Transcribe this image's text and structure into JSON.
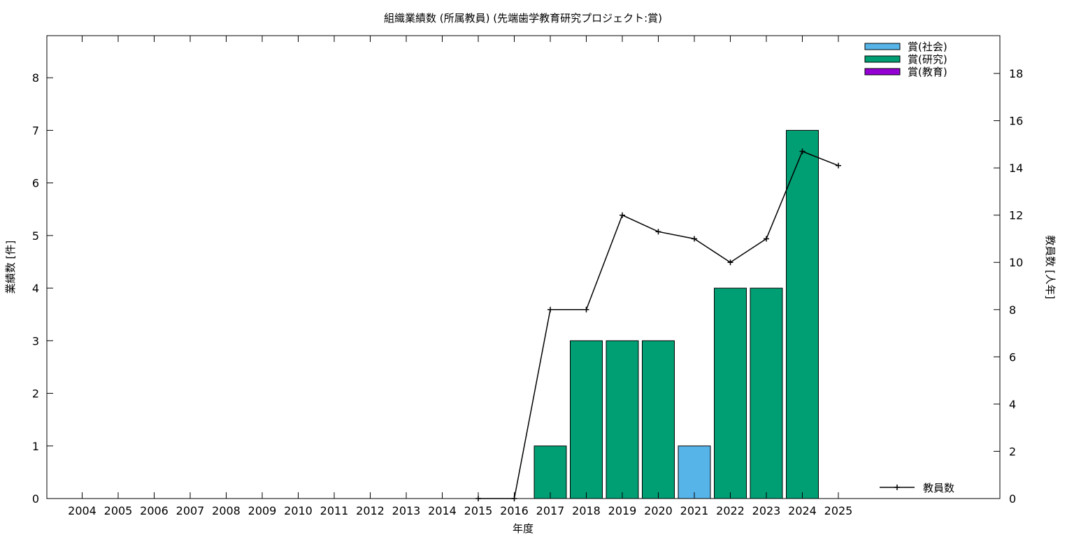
{
  "chart_data": {
    "type": "bar",
    "title": "組織業績数 (所属教員) (先端歯学教育研究プロジェクト:賞)",
    "xlabel": "年度",
    "ylabel": "業績数 [件]",
    "y2label": "教員数 [人年]",
    "categories": [
      "2004",
      "2005",
      "2006",
      "2007",
      "2008",
      "2009",
      "2010",
      "2011",
      "2012",
      "2013",
      "2014",
      "2015",
      "2016",
      "2017",
      "2018",
      "2019",
      "2020",
      "2021",
      "2022",
      "2023",
      "2024",
      "2025"
    ],
    "ylim": [
      0,
      8.8
    ],
    "y2lim": [
      0,
      19.6
    ],
    "yticks": [
      0,
      1,
      2,
      3,
      4,
      5,
      6,
      7,
      8
    ],
    "y2ticks": [
      0,
      2,
      4,
      6,
      8,
      10,
      12,
      14,
      16,
      18
    ],
    "legend_placement": "top-right",
    "series": [
      {
        "name": "賞(社会)",
        "color": "#56b4e9",
        "values": [
          0,
          0,
          0,
          0,
          0,
          0,
          0,
          0,
          0,
          0,
          0,
          0,
          0,
          0,
          0,
          0,
          0,
          1,
          0,
          0,
          0,
          0
        ]
      },
      {
        "name": "賞(研究)",
        "color": "#009e73",
        "values": [
          0,
          0,
          0,
          0,
          0,
          0,
          0,
          0,
          0,
          0,
          0,
          0,
          0,
          1,
          3,
          3,
          3,
          0,
          4,
          4,
          7,
          0
        ]
      },
      {
        "name": "賞(教育)",
        "color": "#9400d3",
        "values": [
          0,
          0,
          0,
          0,
          0,
          0,
          0,
          0,
          0,
          0,
          0,
          0,
          0,
          0,
          0,
          0,
          0,
          0,
          0,
          0,
          0,
          0
        ]
      }
    ],
    "line_series": {
      "name": "教員数",
      "color": "#000000",
      "axis": "y2",
      "x": [
        "2015",
        "2016",
        "2017",
        "2018",
        "2019",
        "2020",
        "2021",
        "2022",
        "2023",
        "2024",
        "2025"
      ],
      "values": [
        0,
        0,
        8,
        8,
        12,
        11.3,
        11,
        10,
        11,
        14.7,
        14.1
      ]
    }
  }
}
